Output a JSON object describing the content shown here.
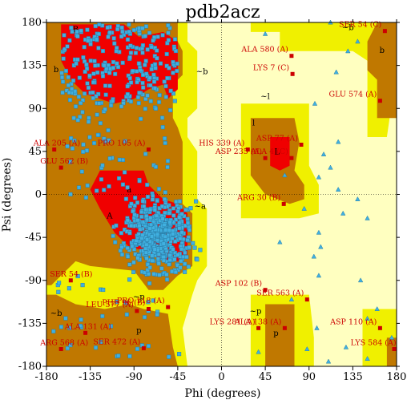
{
  "chart_data": {
    "type": "scatter",
    "title": "pdb2acz",
    "xlabel": "Phi (degrees)",
    "ylabel": "Psi (degrees)",
    "xlim": [
      -180,
      180
    ],
    "ylim": [
      -180,
      180
    ],
    "x_ticks": [
      "-180",
      "-135",
      "-90",
      "-45",
      "0",
      "45",
      "90",
      "135",
      "180"
    ],
    "y_ticks": [
      "180",
      "135",
      "90",
      "45",
      "0",
      "-45",
      "-90",
      "-135",
      "-180"
    ],
    "x_tick_values": [
      -180,
      -135,
      -90,
      -45,
      0,
      45,
      90,
      135,
      180
    ],
    "y_tick_values": [
      180,
      135,
      90,
      45,
      0,
      -45,
      -90,
      -135,
      -180
    ],
    "colors": {
      "core": "#f00000",
      "allowed": "#c07800",
      "generous": "#f0f000",
      "disallowed": "#ffffc0",
      "point_general": "#40b0e0",
      "point_outlier": "#cc0000",
      "grid_line": "#000000"
    },
    "region_labels": [
      {
        "text": "B",
        "phi": -150,
        "psi": 170
      },
      {
        "text": "b",
        "phi": -170,
        "psi": 128
      },
      {
        "text": "~b",
        "phi": -20,
        "psi": 126
      },
      {
        "text": "~l",
        "phi": 45,
        "psi": 100
      },
      {
        "text": "l",
        "phi": 33,
        "psi": 72
      },
      {
        "text": "L",
        "phi": 57,
        "psi": 42
      },
      {
        "text": "~b",
        "phi": 130,
        "psi": 172
      },
      {
        "text": "b",
        "phi": 165,
        "psi": 148
      },
      {
        "text": "A",
        "phi": -115,
        "psi": -25
      },
      {
        "text": "a",
        "phi": -95,
        "psi": 2
      },
      {
        "text": "~a",
        "phi": -22,
        "psi": -15
      },
      {
        "text": "~p",
        "phi": -85,
        "psi": -110
      },
      {
        "text": "~b",
        "phi": -170,
        "psi": -127
      },
      {
        "text": "p",
        "phi": -85,
        "psi": -145
      },
      {
        "text": "p",
        "phi": 56,
        "psi": -148
      },
      {
        "text": "~p",
        "phi": 35,
        "psi": -125
      }
    ],
    "labeled_residues": [
      {
        "label": "SER 54 (C)",
        "phi": 168,
        "psi": 171
      },
      {
        "label": "ALA 580 (A)",
        "phi": 72,
        "psi": 145
      },
      {
        "label": "LYS 7 (C)",
        "phi": 73,
        "psi": 126
      },
      {
        "label": "GLU 574 (A)",
        "phi": 163,
        "psi": 98
      },
      {
        "label": "ALA 205 (A)",
        "phi": -172,
        "psi": 47
      },
      {
        "label": "GLU 562 (B)",
        "phi": -165,
        "psi": 28
      },
      {
        "label": "PRO 105 (A)",
        "phi": -75,
        "psi": 47
      },
      {
        "label": "HIS 339 (A)",
        "phi": 27,
        "psi": 47
      },
      {
        "label": "ASP 235 (A)",
        "phi": 45,
        "psi": 38
      },
      {
        "label": "ASP 77 (A)",
        "phi": 82,
        "psi": 52
      },
      {
        "label": "ALA 4 (C)",
        "phi": 72,
        "psi": 38
      },
      {
        "label": "ARG 30 (B)",
        "phi": 64,
        "psi": -10
      },
      {
        "label": "SER 54 (B)",
        "phi": -155,
        "psi": -90
      },
      {
        "label": "ASP 102 (B)",
        "phi": 45,
        "psi": -100
      },
      {
        "label": "SER 563 (A)",
        "phi": 88,
        "psi": -110
      },
      {
        "label": "PHE 96 (B)",
        "phi": -75,
        "psi": -120
      },
      {
        "label": "LEU 577 (A)",
        "phi": -87,
        "psi": -122
      },
      {
        "label": "PRO 118 (A)",
        "phi": -55,
        "psi": -118
      },
      {
        "label": "ASP 110 (A)",
        "phi": 163,
        "psi": -140
      },
      {
        "label": "ALA 131 (A)",
        "phi": -140,
        "psi": -145
      },
      {
        "label": "LYS 281 (A)",
        "phi": 38,
        "psi": -140
      },
      {
        "label": "ALA 138 (A)",
        "phi": 65,
        "psi": -140
      },
      {
        "label": "ARG 568 (A)",
        "phi": -165,
        "psi": -162
      },
      {
        "label": "SER 472 (A)",
        "phi": -80,
        "psi": -161
      },
      {
        "label": "LYS 584 (A)",
        "phi": 183,
        "psi": -162
      }
    ],
    "general_points": {
      "description": "blue square/triangle residues clustered in the B/b region (approx phi -160..-40, psi 90..180) and the alpha region (approx phi -110..-40, psi -70..0), with scattered glycine triangles in the right half",
      "cluster_beta": {
        "phi_range": [
          -165,
          -45
        ],
        "psi_range": [
          95,
          180
        ],
        "count": 260
      },
      "cluster_alpha": {
        "phi_range": [
          -110,
          -40
        ],
        "psi_range": [
          -75,
          5
        ],
        "count": 520
      },
      "cluster_bridge": {
        "phi_range": [
          -160,
          -50
        ],
        "psi_range": [
          -10,
          95
        ],
        "count": 70
      },
      "cluster_other": {
        "phi_range": [
          -175,
          -40
        ],
        "psi_range": [
          -180,
          -80
        ],
        "count": 40
      },
      "glycine_triangles": [
        [
          45,
          168
        ],
        [
          112,
          180
        ],
        [
          130,
          150
        ],
        [
          140,
          160
        ],
        [
          118,
          128
        ],
        [
          96,
          95
        ],
        [
          120,
          55
        ],
        [
          112,
          28
        ],
        [
          100,
          18
        ],
        [
          85,
          -15
        ],
        [
          120,
          5
        ],
        [
          125,
          -20
        ],
        [
          140,
          -5
        ],
        [
          150,
          -25
        ],
        [
          100,
          -40
        ],
        [
          105,
          42
        ],
        [
          60,
          -50
        ],
        [
          95,
          -65
        ],
        [
          100,
          -85
        ],
        [
          160,
          -120
        ],
        [
          150,
          -130
        ],
        [
          175,
          -150
        ],
        [
          128,
          -160
        ],
        [
          150,
          -172
        ],
        [
          110,
          -175
        ],
        [
          38,
          -165
        ],
        [
          88,
          -162
        ],
        [
          72,
          -110
        ],
        [
          102,
          -55
        ],
        [
          65,
          20
        ],
        [
          143,
          -90
        ],
        [
          98,
          -140
        ]
      ]
    }
  }
}
